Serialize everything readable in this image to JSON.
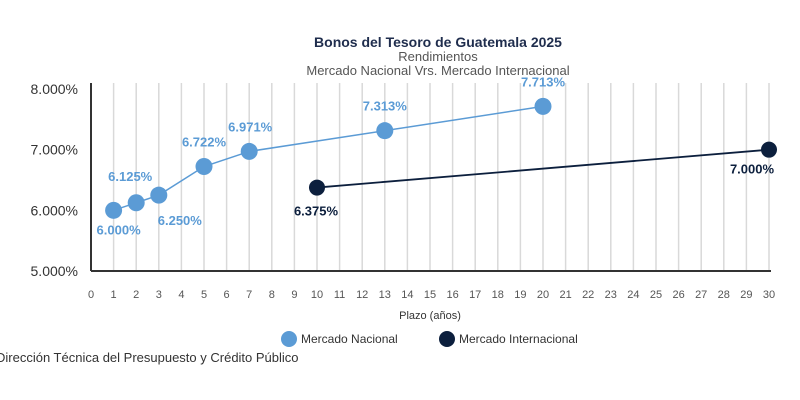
{
  "chart_data": {
    "type": "line",
    "title": "Bonos del Tesoro de Guatemala 2025",
    "subtitle": [
      "Rendimientos",
      "Mercado Nacional Vrs. Mercado Internacional"
    ],
    "xlabel": "Plazo (años)",
    "ylabel": "",
    "xlim": [
      0,
      30
    ],
    "ylim": [
      5,
      8
    ],
    "xticks": [
      0,
      1,
      2,
      3,
      4,
      5,
      6,
      7,
      8,
      9,
      10,
      11,
      12,
      13,
      14,
      15,
      16,
      17,
      18,
      19,
      20,
      21,
      22,
      23,
      24,
      25,
      26,
      27,
      28,
      29,
      30
    ],
    "yticks": [
      "5.000%",
      "6.000%",
      "7.000%",
      "8.000%"
    ],
    "grid": "vertical",
    "legend": "bottom",
    "series": [
      {
        "name": "Mercado Nacional",
        "color": "#5b9bd5",
        "x": [
          1,
          2,
          3,
          5,
          7,
          13,
          20
        ],
        "y": [
          6.0,
          6.125,
          6.25,
          6.722,
          6.971,
          7.313,
          7.713
        ],
        "labels": [
          "6.000%",
          "6.125%",
          "6.250%",
          "6.722%",
          "6.971%",
          "7.313%",
          "7.713%"
        ]
      },
      {
        "name": "Mercado Internacional",
        "color": "#0c1f3d",
        "x": [
          10,
          30
        ],
        "y": [
          6.375,
          7.0
        ],
        "labels": [
          "6.375%",
          "7.000%"
        ]
      }
    ]
  },
  "source": "Dirección Técnica del Presupuesto y Crédito Público"
}
